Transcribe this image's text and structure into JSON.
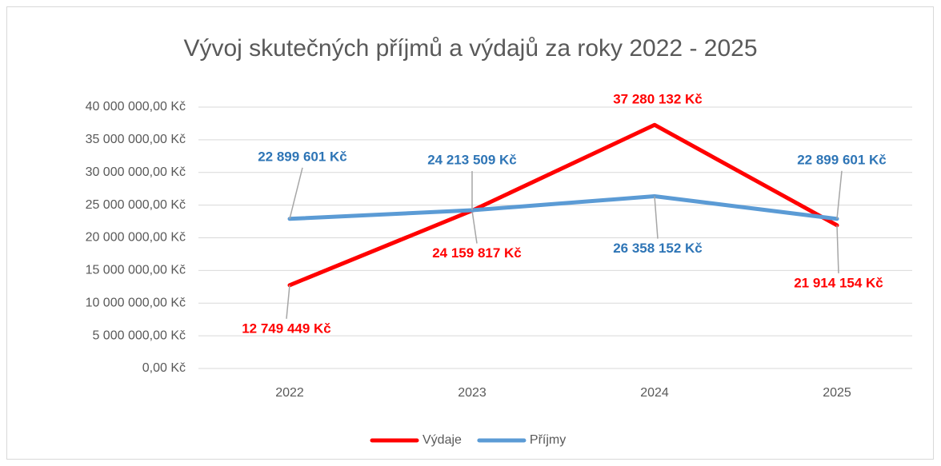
{
  "chart_data": {
    "type": "line",
    "title": "Vývoj skutečných příjmů a výdajů za roky 2022 - 2025",
    "categories": [
      "2022",
      "2023",
      "2024",
      "2025"
    ],
    "series": [
      {
        "name": "Výdaje",
        "color": "#ff0000",
        "label_color": "#ff0000",
        "values": [
          12749449,
          24159817,
          37280132,
          21914154
        ],
        "value_labels": [
          "12 749 449 Kč",
          "24 159 817 Kč",
          "37 280 132 Kč",
          "21 914 154 Kč"
        ]
      },
      {
        "name": "Příjmy",
        "color": "#5b9bd5",
        "label_color": "#2e75b6",
        "values": [
          22899601,
          24213509,
          26358152,
          22899601
        ],
        "value_labels": [
          "22 899 601 Kč",
          "24 213 509 Kč",
          "26 358 152 Kč",
          "22 899 601 Kč"
        ]
      }
    ],
    "ylim": [
      0,
      40000000
    ],
    "yticks": [
      {
        "value": 0,
        "label": "0,00 Kč"
      },
      {
        "value": 5000000,
        "label": "5 000 000,00 Kč"
      },
      {
        "value": 10000000,
        "label": "10 000 000,00 Kč"
      },
      {
        "value": 15000000,
        "label": "15 000 000,00 Kč"
      },
      {
        "value": 20000000,
        "label": "20 000 000,00 Kč"
      },
      {
        "value": 25000000,
        "label": "25 000 000,00 Kč"
      },
      {
        "value": 30000000,
        "label": "30 000 000,00 Kč"
      },
      {
        "value": 35000000,
        "label": "35 000 000,00 Kč"
      },
      {
        "value": 40000000,
        "label": "40 000 000,00 Kč"
      }
    ],
    "grid": true,
    "legend": "bottom"
  }
}
